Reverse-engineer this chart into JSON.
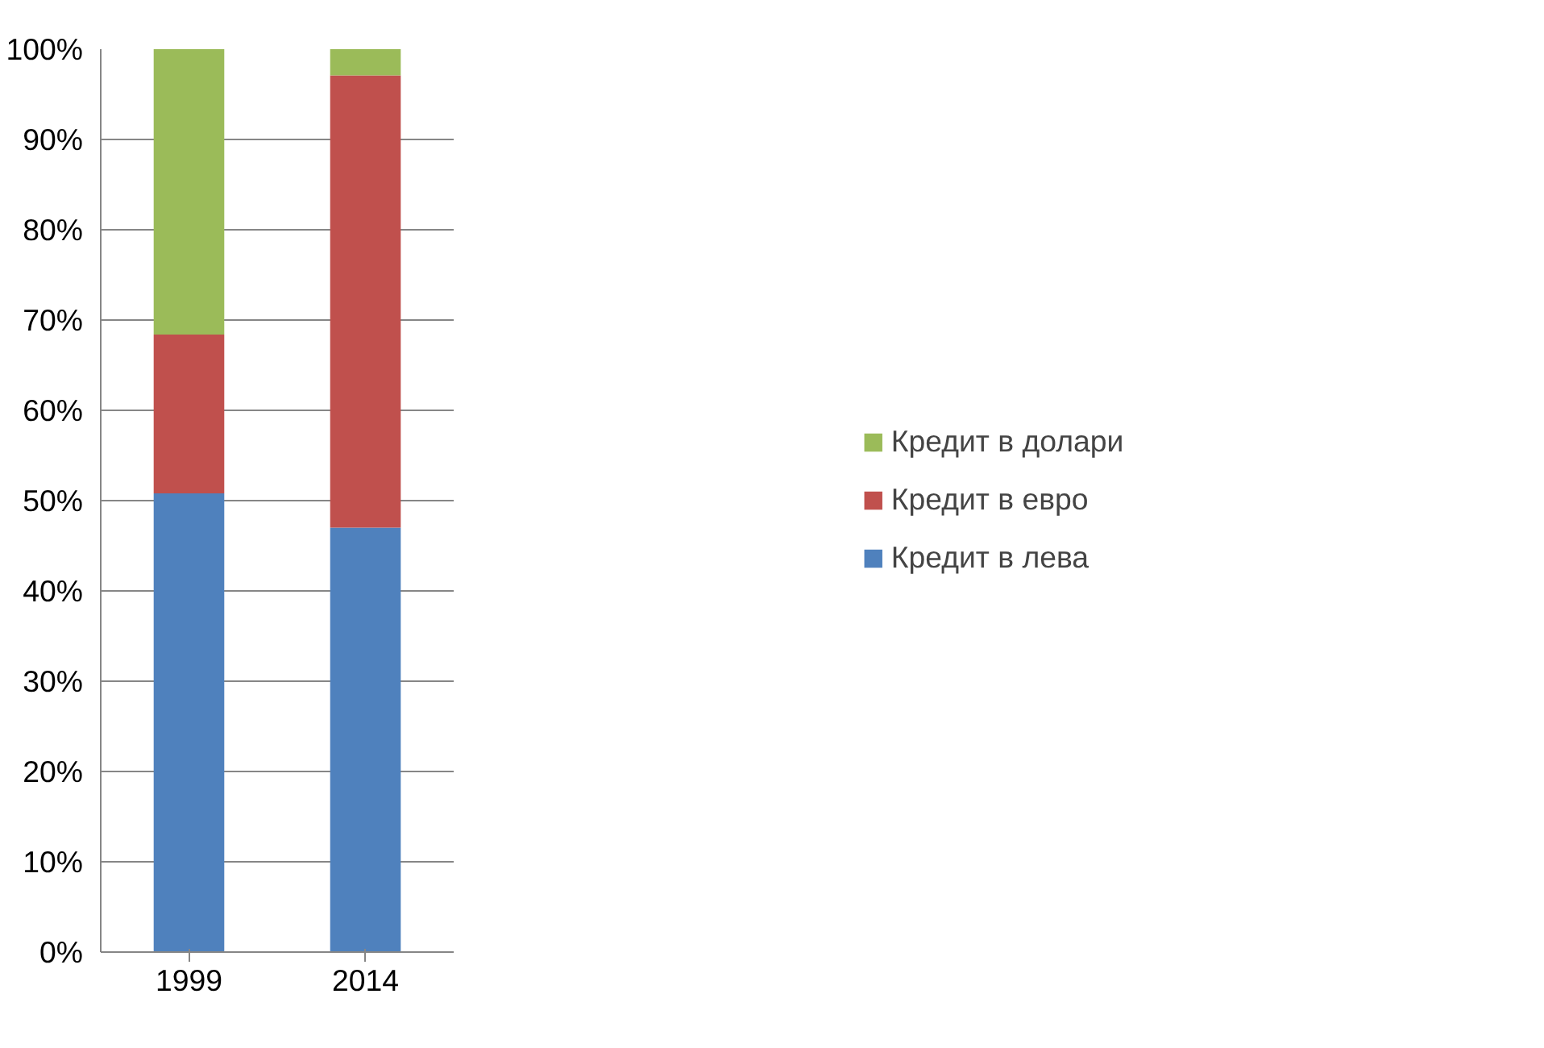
{
  "chart_data": {
    "type": "bar",
    "stacked": true,
    "categories": [
      "1999",
      "2014"
    ],
    "series": [
      {
        "name": "Кредит в лева",
        "color": "#4f81bd",
        "values": [
          50.8,
          47.0
        ]
      },
      {
        "name": "Кредит в евро",
        "color": "#c0504d",
        "values": [
          17.6,
          50.1
        ]
      },
      {
        "name": "Кредит в долари",
        "color": "#9bbb59",
        "values": [
          31.6,
          2.9
        ]
      }
    ],
    "ylim": [
      0,
      100
    ],
    "yticks": [
      {
        "value": 0,
        "label": "0%"
      },
      {
        "value": 10,
        "label": "10%"
      },
      {
        "value": 20,
        "label": "20%"
      },
      {
        "value": 30,
        "label": "30%"
      },
      {
        "value": 40,
        "label": "40%"
      },
      {
        "value": 50,
        "label": "50%"
      },
      {
        "value": 60,
        "label": "60%"
      },
      {
        "value": 70,
        "label": "70%"
      },
      {
        "value": 80,
        "label": "80%"
      },
      {
        "value": 90,
        "label": "90%"
      },
      {
        "value": 100,
        "label": "100%"
      }
    ],
    "grid": "y",
    "legend": "right"
  }
}
